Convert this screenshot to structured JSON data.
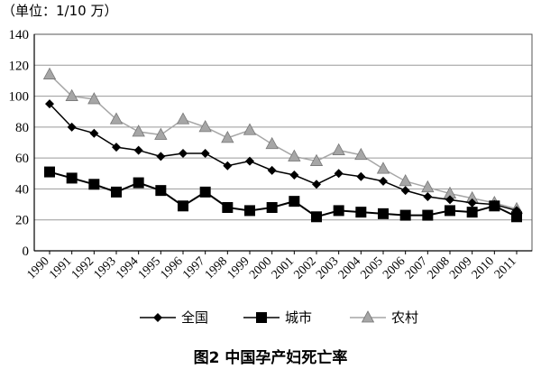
{
  "unit_label": "（单位：1/10 万）",
  "caption": "图2 中国孕产妇死亡率",
  "chart_data": {
    "type": "line",
    "title": "图2 中国孕产妇死亡率",
    "ylabel": "（单位：1/10 万）",
    "xlabel": "",
    "ylim": [
      0,
      140
    ],
    "yticks": [
      0,
      20,
      40,
      60,
      80,
      100,
      120,
      140
    ],
    "grid": true,
    "legend_position": "bottom",
    "x": [
      "1990",
      "1991",
      "1992",
      "1993",
      "1994",
      "1995",
      "1996",
      "1997",
      "1998",
      "1999",
      "2000",
      "2001",
      "2002",
      "2003",
      "2004",
      "2005",
      "2006",
      "2007",
      "2008",
      "2009",
      "2010",
      "2011"
    ],
    "series": [
      {
        "name": "全国",
        "marker": "diamond",
        "color": "#000000",
        "values": [
          95,
          80,
          76,
          67,
          65,
          61,
          63,
          63,
          55,
          58,
          52,
          49,
          43,
          50,
          48,
          45,
          39,
          35,
          33,
          31,
          30,
          26
        ]
      },
      {
        "name": "城市",
        "marker": "square",
        "color": "#000000",
        "values": [
          51,
          47,
          43,
          38,
          44,
          39,
          29,
          38,
          28,
          26,
          28,
          32,
          22,
          26,
          25,
          24,
          23,
          23,
          26,
          25,
          29,
          22
        ]
      },
      {
        "name": "农村",
        "marker": "triangle",
        "color": "#a6a6a6",
        "values": [
          114,
          100,
          98,
          85,
          77,
          75,
          85,
          80,
          73,
          78,
          69,
          61,
          58,
          65,
          62,
          53,
          45,
          41,
          37,
          34,
          31,
          27
        ]
      }
    ]
  }
}
